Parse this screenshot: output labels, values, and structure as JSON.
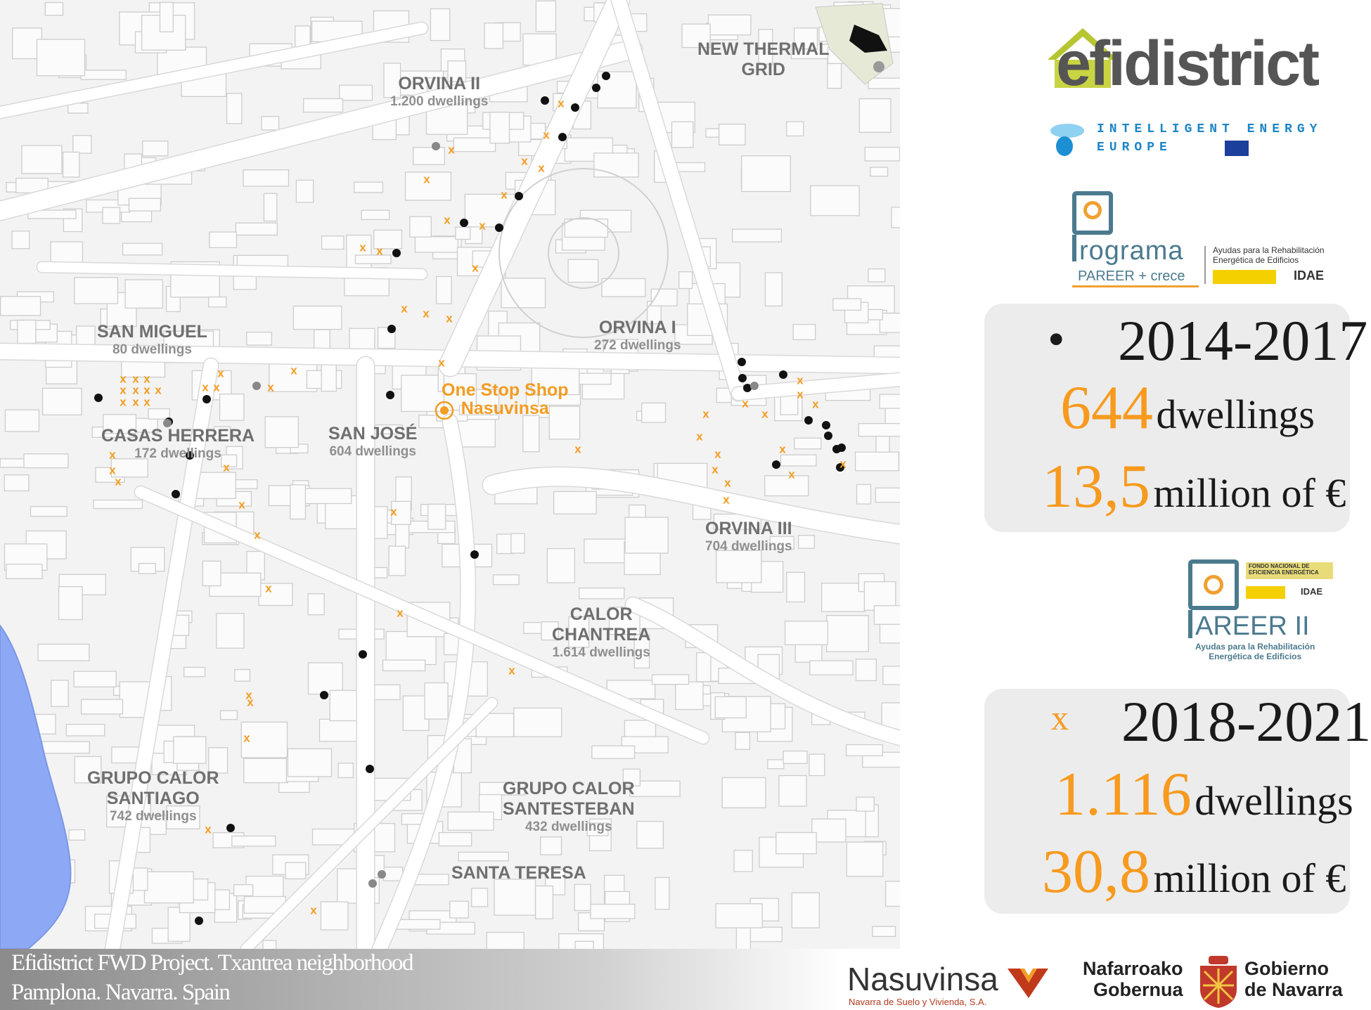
{
  "map": {
    "districts": [
      {
        "id": "orvina-ii",
        "name": "ORVINA II",
        "dwellings": "1.200 dwellings"
      },
      {
        "id": "new-thermal-grid",
        "name": "NEW THERMAL\nGRID",
        "dwellings": ""
      },
      {
        "id": "san-miguel",
        "name": "SAN MIGUEL",
        "dwellings": "80 dwellings"
      },
      {
        "id": "orvina-i",
        "name": "ORVINA I",
        "dwellings": "272 dwellings"
      },
      {
        "id": "casas-herrera",
        "name": "CASAS HERRERA",
        "dwellings": "172 dwellings"
      },
      {
        "id": "san-jose",
        "name": "SAN JOSÉ",
        "dwellings": "604 dwellings"
      },
      {
        "id": "orvina-iii",
        "name": "ORVINA III",
        "dwellings": "704 dwellings"
      },
      {
        "id": "calor-chantrea",
        "name": "CALOR\nCHANTREA",
        "dwellings": "1.614 dwellings"
      },
      {
        "id": "grupo-calor-santiago",
        "name": "GRUPO CALOR\nSANTIAGO",
        "dwellings": "742 dwellings"
      },
      {
        "id": "grupo-calor-santesteban",
        "name": "GRUPO CALOR\nSANTESTEBAN",
        "dwellings": "432 dwellings"
      },
      {
        "id": "santa-teresa",
        "name": "SANTA TERESA",
        "dwellings": ""
      }
    ],
    "one_stop_shop": "One Stop Shop\nNasuvinsa",
    "colors": {
      "x_marker": "#f39c22",
      "dot_marker": "#111111",
      "river": "#8da8f4"
    }
  },
  "logos": {
    "efidistrict": "efidistrict",
    "iee_line1": "INTELLIGENT ENERGY",
    "iee_line2": "EUROPE",
    "programa": "rograma",
    "pareer_crece": "PAREER + crece",
    "ayudas": "Ayudas para la Rehabilitación\nEnergética de Edificios",
    "idae": "IDAE",
    "fondo": "FONDO NACIONAL DE\nEFICIENCIA ENERGÉTICA",
    "pareer2": "AREER II",
    "pareer2_sub": "Ayudas para la Rehabilitación\nEnergética de Edificios"
  },
  "period1": {
    "marker": "•",
    "years": "2014-2017",
    "dwellings_num": "644",
    "dwellings_unit": "dwellings",
    "cost_num": "13,5",
    "cost_unit": "million of €"
  },
  "period2": {
    "marker": "x",
    "years": "2018-2021",
    "dwellings_num": "1.116",
    "dwellings_unit": "dwellings",
    "cost_num": "30,8",
    "cost_unit": "million of €"
  },
  "footer": {
    "line1": "Efidistrict FWD Project. Txantrea neighborhood",
    "line2": "Pamplona. Navarra.  Spain",
    "nasuvinsa": "Nasuvinsa",
    "nasuvinsa_sub": "Navarra de Suelo y Vivienda, S.A.",
    "gov_left": "Nafarroako\nGobernua",
    "gov_right": "Gobierno\nde Navarra"
  }
}
